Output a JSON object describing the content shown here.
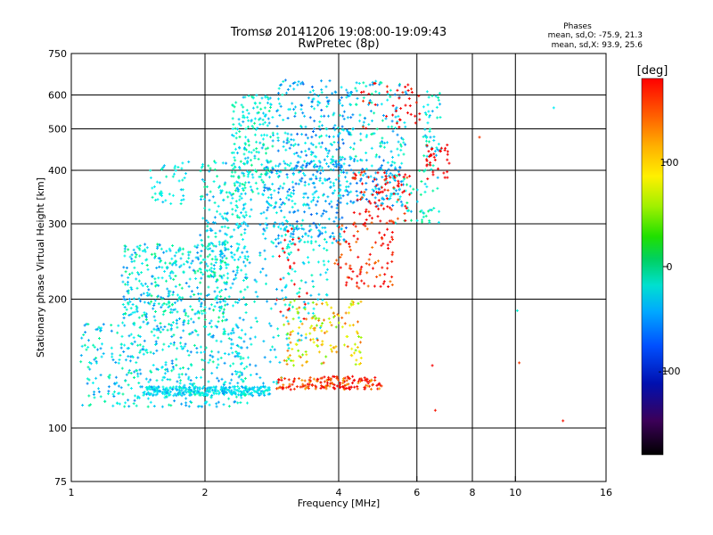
{
  "chart_data": {
    "type": "scatter",
    "title": "Tromsø 20141206 19:08:00-19:09:43",
    "subtitle": "RwPretec (8p)",
    "xlabel": "Frequency [MHz]",
    "ylabel": "Stationary phase Virtual Height [km]",
    "x_scale": "log",
    "y_scale": "log",
    "xlim": [
      1,
      16
    ],
    "ylim": [
      75,
      750
    ],
    "x_ticks": [
      1,
      2,
      4,
      6,
      8,
      10,
      16
    ],
    "x_tick_labels": [
      "1",
      "2",
      "4",
      "6",
      "8",
      "10",
      "16"
    ],
    "x_grid": [
      2,
      4,
      6,
      8,
      10
    ],
    "y_ticks": [
      75,
      100,
      200,
      300,
      400,
      500,
      600,
      750
    ],
    "y_tick_labels": [
      "75",
      "100",
      "200",
      "300",
      "400",
      "500",
      "600",
      "750"
    ],
    "y_grid": [
      100,
      200,
      300,
      400,
      500,
      600
    ],
    "grid": true,
    "legend": {
      "title": "Phases",
      "lines": [
        "mean, sd,O: -75.9, 21.3",
        "mean, sd,X:  93.9, 25.6"
      ],
      "position": "top-right"
    },
    "colorbar": {
      "unit": "[deg]",
      "range": [
        -180,
        180
      ],
      "ticks": [
        100,
        0,
        -100
      ],
      "tick_labels": [
        "100",
        "0",
        "-100"
      ],
      "position": "right",
      "colormap": "rainbow"
    },
    "series": [
      {
        "clusters": [
          {
            "freq": [
              1.45,
              2.8
            ],
            "height": [
              119,
              125
            ],
            "phase": [
              -100,
              -65
            ],
            "n": 300
          },
          {
            "freq": [
              1.05,
              2.5
            ],
            "height": [
              112,
              175
            ],
            "phase": [
              -110,
              -50
            ],
            "n": 420
          },
          {
            "freq": [
              1.3,
              2.25
            ],
            "height": [
              175,
              270
            ],
            "phase": [
              -110,
              -40
            ],
            "n": 380
          },
          {
            "freq": [
              1.5,
              1.85
            ],
            "height": [
              330,
              420
            ],
            "phase": [
              -95,
              -55
            ],
            "n": 45
          },
          {
            "freq": [
              1.95,
              2.5
            ],
            "height": [
              190,
              420
            ],
            "phase": [
              -105,
              -45
            ],
            "n": 220
          },
          {
            "freq": [
              2.3,
              2.85
            ],
            "height": [
              350,
              600
            ],
            "phase": [
              -100,
              -45
            ],
            "n": 200
          },
          {
            "freq": [
              2.2,
              3.1
            ],
            "height": [
              125,
              350
            ],
            "phase": [
              -105,
              -60
            ],
            "n": 150
          },
          {
            "freq": [
              2.7,
              4.2
            ],
            "height": [
              270,
              420
            ],
            "phase": [
              -120,
              -65
            ],
            "n": 260
          },
          {
            "freq": [
              2.9,
              4.3
            ],
            "height": [
              400,
              650
            ],
            "phase": [
              -120,
              -60
            ],
            "n": 220
          },
          {
            "freq": [
              3.0,
              3.8
            ],
            "height": [
              160,
              300
            ],
            "phase": [
              -100,
              -55
            ],
            "n": 90
          },
          {
            "freq": [
              4.0,
              5.6
            ],
            "height": [
              330,
              430
            ],
            "phase": [
              -120,
              -70
            ],
            "n": 130
          },
          {
            "freq": [
              4.2,
              5.7
            ],
            "height": [
              420,
              650
            ],
            "phase": [
              -110,
              -50
            ],
            "n": 110
          },
          {
            "freq": [
              5.2,
              6.8
            ],
            "height": [
              300,
              420
            ],
            "phase": [
              -100,
              -40
            ],
            "n": 60
          },
          {
            "freq": [
              6.2,
              6.8
            ],
            "height": [
              430,
              620
            ],
            "phase": [
              -100,
              -50
            ],
            "n": 45
          },
          {
            "freq": [
              2.9,
              5.0
            ],
            "height": [
              123,
              132
            ],
            "phase": [
              80,
              150
            ],
            "n": 170
          },
          {
            "freq": [
              3.0,
              4.5
            ],
            "height": [
              140,
              200
            ],
            "phase": [
              20,
              100
            ],
            "n": 140
          },
          {
            "freq": [
              3.9,
              5.3
            ],
            "height": [
              210,
              300
            ],
            "phase": [
              90,
              150
            ],
            "n": 90
          },
          {
            "freq": [
              4.3,
              5.8
            ],
            "height": [
              300,
              400
            ],
            "phase": [
              100,
              160
            ],
            "n": 90
          },
          {
            "freq": [
              4.5,
              6.1
            ],
            "height": [
              500,
              640
            ],
            "phase": [
              110,
              170
            ],
            "n": 40
          },
          {
            "freq": [
              6.3,
              7.1
            ],
            "height": [
              380,
              460
            ],
            "phase": [
              120,
              175
            ],
            "n": 35
          },
          {
            "freq": [
              2.9,
              3.4
            ],
            "height": [
              180,
              300
            ],
            "phase": [
              140,
              175
            ],
            "n": 25
          }
        ]
      }
    ],
    "sparse_points": [
      {
        "freq": 12.2,
        "height": 560,
        "phase": -80
      },
      {
        "freq": 8.3,
        "height": 478,
        "phase": 110
      },
      {
        "freq": 10.1,
        "height": 188,
        "phase": -70
      },
      {
        "freq": 10.2,
        "height": 142,
        "phase": 110
      },
      {
        "freq": 12.8,
        "height": 104,
        "phase": 120
      },
      {
        "freq": 6.6,
        "height": 110,
        "phase": 120
      },
      {
        "freq": 6.5,
        "height": 140,
        "phase": 140
      }
    ]
  }
}
